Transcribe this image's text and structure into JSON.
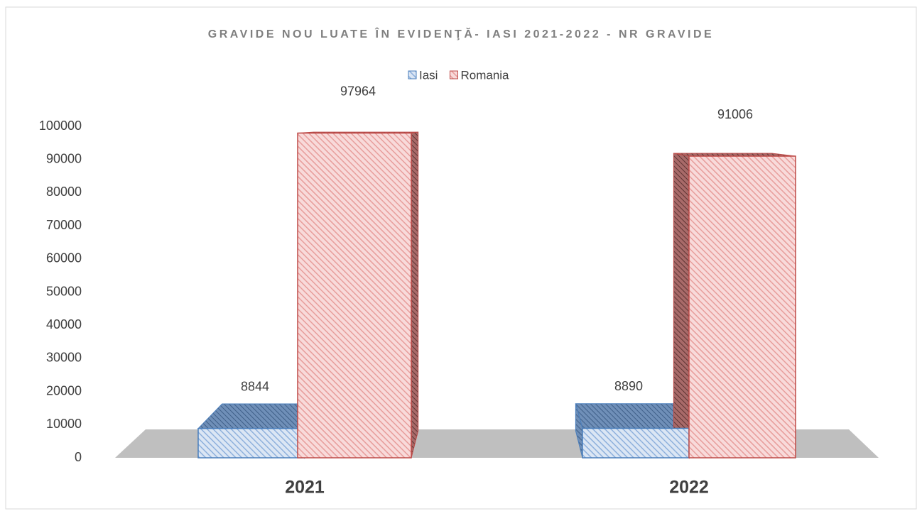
{
  "chart_data": {
    "type": "bar3d",
    "title": "GRAVIDE NOU LUATE ÎN EVIDENŢĂ- IASI 2021-2022 - NR GRAVIDE",
    "categories": [
      "2021",
      "2022"
    ],
    "series": [
      {
        "name": "Iasi",
        "color": "#4a7ebb",
        "values": [
          8844,
          8890
        ]
      },
      {
        "name": "Romania",
        "color": "#be4b48",
        "values": [
          97964,
          91006
        ]
      }
    ],
    "ylim": [
      0,
      100000
    ],
    "yticks": [
      0,
      10000,
      20000,
      30000,
      40000,
      50000,
      60000,
      70000,
      80000,
      90000,
      100000
    ],
    "legend": "top"
  }
}
